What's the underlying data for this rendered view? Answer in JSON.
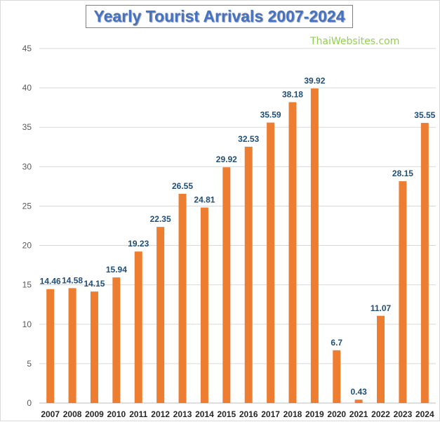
{
  "title": "Yearly Tourist Arrivals 2007-2024",
  "watermark": "ThaiWebsites.com",
  "chart_data": {
    "type": "bar",
    "title": "Yearly Tourist Arrivals 2007-2024",
    "xlabel": "",
    "ylabel": "",
    "categories": [
      "2007",
      "2008",
      "2009",
      "2010",
      "2011",
      "2012",
      "2013",
      "2014",
      "2015",
      "2016",
      "2017",
      "2018",
      "2019",
      "2020",
      "2021",
      "2022",
      "2023",
      "2024"
    ],
    "values": [
      14.46,
      14.58,
      14.15,
      15.94,
      19.23,
      22.35,
      26.55,
      24.81,
      29.92,
      32.53,
      35.59,
      38.18,
      39.92,
      6.7,
      0.43,
      11.07,
      28.15,
      35.55
    ],
    "data_labels": [
      "14.46",
      "14.58",
      "14.15",
      "15.94",
      "19.23",
      "22.35",
      "26.55",
      "24.81",
      "29.92",
      "32.53",
      "35.59",
      "38.18",
      "39.92",
      "6.7",
      "0.43",
      "11.07",
      "28.15",
      "35.55"
    ],
    "y_ticks": [
      "0",
      "5",
      "10",
      "15",
      "20",
      "25",
      "30",
      "35",
      "40",
      "45"
    ],
    "ylim": [
      0,
      45
    ],
    "grid": true,
    "legend": "none",
    "colors": {
      "bar": "#ed7d31",
      "grid": "#d9d9d9",
      "data_label": "#1f4e79",
      "title": "#4472c4"
    }
  }
}
